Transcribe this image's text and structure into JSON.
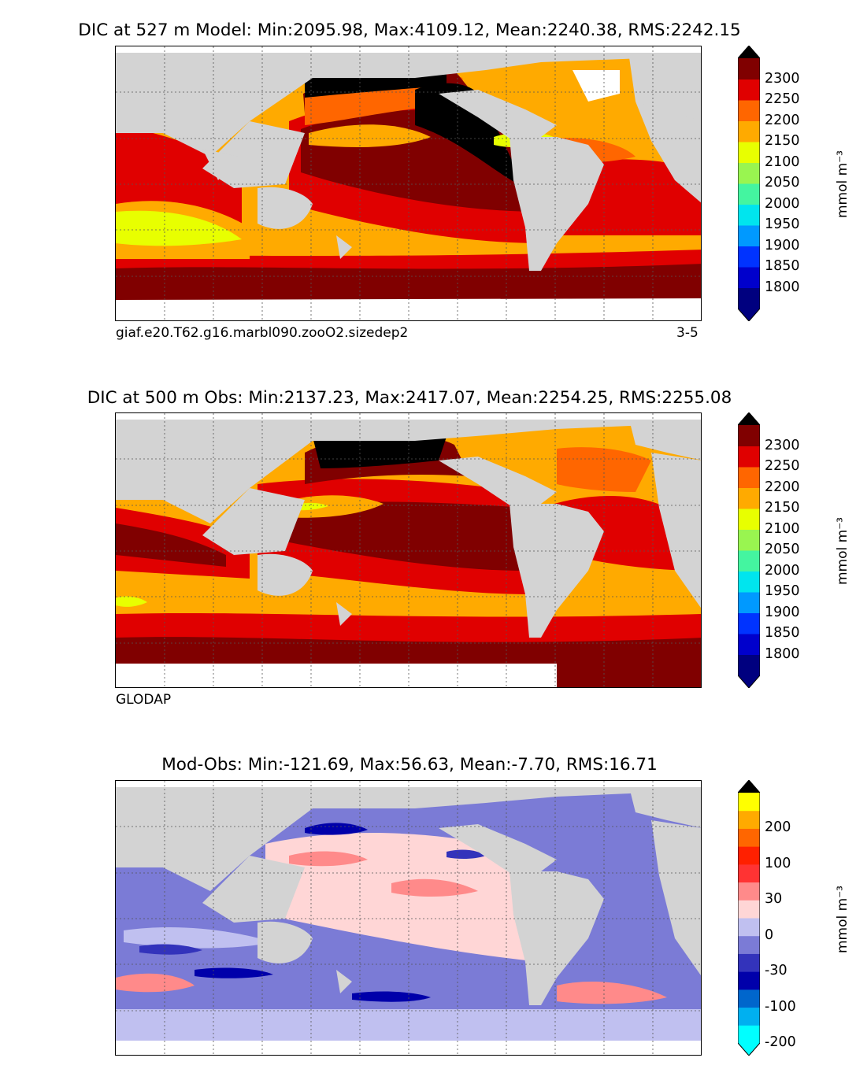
{
  "panels": [
    {
      "title": "DIC at 527 m Model: Min:2095.98, Max:4109.12, Mean:2240.38, RMS:2242.15",
      "footer_left": "giaf.e20.T62.g16.marbl090.zooO2.sizedep2",
      "footer_right": "3-5",
      "units": "mmol m⁻³",
      "colorbar": {
        "ticks": [
          "2300",
          "2250",
          "2200",
          "2150",
          "2100",
          "2050",
          "2000",
          "1950",
          "1900",
          "1850",
          "1800"
        ],
        "colors": [
          "#00007f",
          "#0000cc",
          "#0033ff",
          "#0099ff",
          "#00e5ee",
          "#44f5a0",
          "#99f550",
          "#e8ff00",
          "#ffaa00",
          "#ff6600",
          "#e00000",
          "#800000"
        ],
        "extend_low": "#00007f",
        "extend_high": "#000000"
      }
    },
    {
      "title": "DIC at 500 m Obs: Min:2137.23, Max:2417.07, Mean:2254.25, RMS:2255.08",
      "footer_left": "GLODAP",
      "footer_right": "",
      "units": "mmol m⁻³",
      "colorbar": {
        "ticks": [
          "2300",
          "2250",
          "2200",
          "2150",
          "2100",
          "2050",
          "2000",
          "1950",
          "1900",
          "1850",
          "1800"
        ],
        "colors": [
          "#00007f",
          "#0000cc",
          "#0033ff",
          "#0099ff",
          "#00e5ee",
          "#44f5a0",
          "#99f550",
          "#e8ff00",
          "#ffaa00",
          "#ff6600",
          "#e00000",
          "#800000"
        ],
        "extend_low": "#00007f",
        "extend_high": "#000000"
      }
    },
    {
      "title": "Mod-Obs: Min:-121.69, Max:56.63, Mean:-7.70, RMS:16.71",
      "footer_left": "",
      "footer_right": "",
      "units": "mmol m⁻³",
      "colorbar": {
        "ticks": [
          "200",
          "100",
          "30",
          "0",
          "-30",
          "-100",
          "-200"
        ],
        "colors": [
          "#00ffff",
          "#00b0f0",
          "#0066cc",
          "#0000aa",
          "#3333bb",
          "#7b7bd6",
          "#c0c0f0",
          "#ffd6d6",
          "#ff8a8a",
          "#ff3333",
          "#ff2000",
          "#ff6600",
          "#ffaa00",
          "#ffff00"
        ],
        "extend_low": "#00ffff",
        "extend_high": "#000000"
      }
    }
  ],
  "chart_data": [
    {
      "type": "heatmap",
      "title": "DIC at 527 m Model: Min:2095.98, Max:4109.12, Mean:2240.38, RMS:2242.15",
      "variable": "DIC",
      "depth_m": 527,
      "source": "Model",
      "stats": {
        "min": 2095.98,
        "max": 4109.12,
        "mean": 2240.38,
        "rms": 2242.15
      },
      "levels": [
        1800,
        1850,
        1900,
        1950,
        2000,
        2050,
        2100,
        2150,
        2200,
        2250,
        2300
      ],
      "units": "mmol m-3",
      "label": "giaf.e20.T62.g16.marbl090.zooO2.sizedep2",
      "years": "3-5"
    },
    {
      "type": "heatmap",
      "title": "DIC at 500 m Obs: Min:2137.23, Max:2417.07, Mean:2254.25, RMS:2255.08",
      "variable": "DIC",
      "depth_m": 500,
      "source": "GLODAP",
      "stats": {
        "min": 2137.23,
        "max": 2417.07,
        "mean": 2254.25,
        "rms": 2255.08
      },
      "levels": [
        1800,
        1850,
        1900,
        1950,
        2000,
        2050,
        2100,
        2150,
        2200,
        2250,
        2300
      ],
      "units": "mmol m-3"
    },
    {
      "type": "heatmap",
      "title": "Mod-Obs: Min:-121.69, Max:56.63, Mean:-7.70, RMS:16.71",
      "variable": "DIC difference",
      "stats": {
        "min": -121.69,
        "max": 56.63,
        "mean": -7.7,
        "rms": 16.71
      },
      "levels": [
        -200,
        -100,
        -30,
        0,
        30,
        100,
        200
      ],
      "units": "mmol m-3"
    }
  ]
}
